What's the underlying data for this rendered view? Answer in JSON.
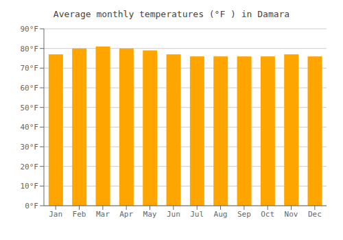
{
  "chart_data": {
    "type": "bar",
    "title": "Average monthly temperatures (°F ) in Damara",
    "categories": [
      "Jan",
      "Feb",
      "Mar",
      "Apr",
      "May",
      "Jun",
      "Jul",
      "Aug",
      "Sep",
      "Oct",
      "Nov",
      "Dec"
    ],
    "values": [
      77,
      80,
      81,
      80,
      79,
      77,
      76,
      76,
      76,
      76,
      77,
      76
    ],
    "color": "#FFA500",
    "ylim": [
      0,
      90
    ],
    "yticks": [
      {
        "value": 0,
        "label": "0°F"
      },
      {
        "value": 10,
        "label": "10°F"
      },
      {
        "value": 20,
        "label": "20°F"
      },
      {
        "value": 30,
        "label": "30°F"
      },
      {
        "value": 40,
        "label": "40°F"
      },
      {
        "value": 50,
        "label": "50°F"
      },
      {
        "value": 60,
        "label": "60°F"
      },
      {
        "value": 70,
        "label": "70°F"
      },
      {
        "value": 80,
        "label": "80°F"
      },
      {
        "value": 90,
        "label": "90°F"
      }
    ],
    "grid": true
  }
}
